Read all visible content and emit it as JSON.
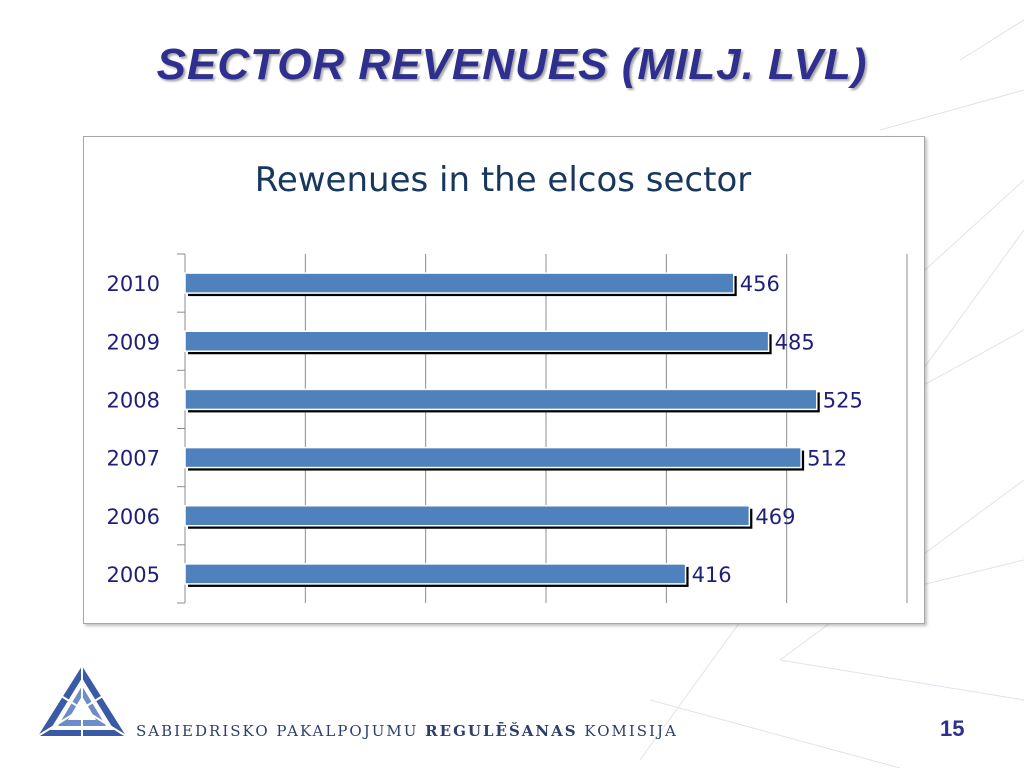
{
  "slide": {
    "title": "SECTOR REVENUES (MILJ. LVL)",
    "page_number": "15"
  },
  "footer": {
    "org_part1": "SABIEDRISKO PAKALPOJUMU",
    "org_part2": "REGULĒŠANAS",
    "org_part3": "KOMISIJA",
    "logo_icon": "triangle-logo-icon"
  },
  "colors": {
    "title": "#2e2f8f",
    "chart_title": "#17375e",
    "bar_fill": "#4f81bd",
    "bar_shadow": "#000000",
    "labels": "#1f1f7a"
  },
  "chart_data": {
    "type": "bar",
    "orientation": "horizontal",
    "title": "Rewenues in the elcos sector",
    "categories": [
      "2010",
      "2009",
      "2008",
      "2007",
      "2006",
      "2005"
    ],
    "values": [
      456,
      485,
      525,
      512,
      469,
      416
    ],
    "xlim": [
      0,
      600
    ],
    "grid": true,
    "legend": "none"
  }
}
